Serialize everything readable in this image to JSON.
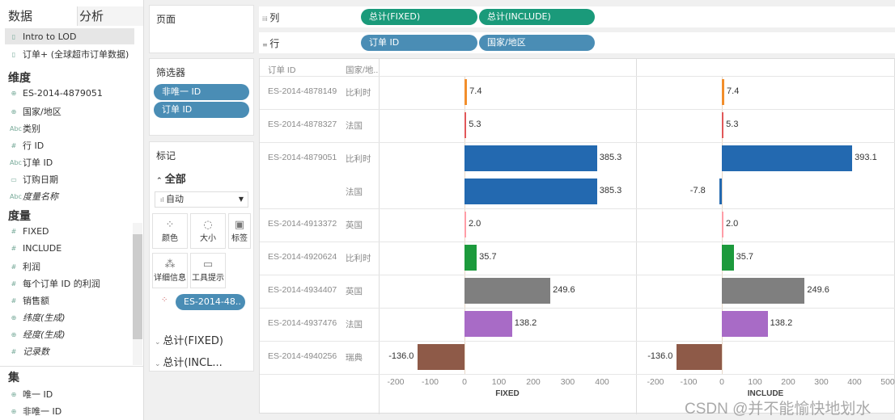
{
  "data_pane": {
    "tabs": [
      "数据",
      "分析"
    ],
    "sources": [
      "Intro to LOD",
      "订单+ (全球超市订单数据)"
    ],
    "dimensions_title": "维度",
    "dimensions": [
      {
        "icon": "set-icon",
        "label": "ES-2014-4879051"
      },
      {
        "icon": "globe-icon",
        "label": "国家/地区"
      },
      {
        "icon": "abc-icon",
        "label": "类别"
      },
      {
        "icon": "number-icon",
        "label": "行 ID"
      },
      {
        "icon": "abc-icon",
        "label": "订单 ID"
      },
      {
        "icon": "calendar-icon",
        "label": "订购日期"
      },
      {
        "icon": "abc-icon",
        "label": "度量名称"
      }
    ],
    "measures_title": "度量",
    "measures": [
      {
        "icon": "number-icon",
        "label": "FIXED"
      },
      {
        "icon": "number-icon",
        "label": "INCLUDE"
      },
      {
        "icon": "number-icon",
        "label": "利润"
      },
      {
        "icon": "number-icon",
        "label": "每个订单 ID 的利润"
      },
      {
        "icon": "number-icon",
        "label": "销售额"
      },
      {
        "icon": "globe-icon",
        "label": "纬度(生成)"
      },
      {
        "icon": "globe-icon",
        "label": "经度(生成)"
      },
      {
        "icon": "number-icon",
        "label": "记录数"
      }
    ],
    "sets_title": "集",
    "sets": [
      {
        "icon": "set-icon",
        "label": "唯一 ID"
      },
      {
        "icon": "set-icon",
        "label": "非唯一 ID"
      }
    ]
  },
  "pages": {
    "title": "页面"
  },
  "filters": {
    "title": "筛选器",
    "pills": [
      "非唯一 ID",
      "订单 ID"
    ]
  },
  "marks": {
    "title": "标记",
    "all": "全部",
    "type": "自动",
    "buttons": [
      "颜色",
      "大小",
      "标签",
      "详细信息",
      "工具提示"
    ],
    "color_pill": "ES-2014-48..",
    "sections": [
      "总计(FIXED)",
      "总计(INCL..."
    ]
  },
  "shelves": {
    "columns_label": "列",
    "columns": [
      "总计(FIXED)",
      "总计(INCLUDE)"
    ],
    "rows_label": "行",
    "rows": [
      "订单 ID",
      "国家/地区"
    ]
  },
  "view": {
    "headers": [
      "订单 ID",
      "国家/地.."
    ],
    "axis_titles": [
      "FIXED",
      "INCLUDE"
    ],
    "watermark": "CSDN @并不能愉快地划水"
  },
  "chart_data": {
    "type": "bar",
    "orientation": "horizontal",
    "rows": [
      {
        "order": "ES-2014-4878149",
        "country": "比利时",
        "fixed": 7.4,
        "include": 7.4,
        "color": "#f28e2b"
      },
      {
        "order": "ES-2014-4878327",
        "country": "法国",
        "fixed": 5.3,
        "include": 5.3,
        "color": "#e15759"
      },
      {
        "order": "ES-2014-4879051",
        "country": "比利时",
        "fixed": 385.3,
        "include": 393.1,
        "color": "#2369b0"
      },
      {
        "order": "",
        "country": "法国",
        "fixed": 385.3,
        "include": -7.8,
        "color": "#2369b0"
      },
      {
        "order": "ES-2014-4913372",
        "country": "英国",
        "fixed": 2.0,
        "include": 2.0,
        "color": "#ff9da7"
      },
      {
        "order": "ES-2014-4920624",
        "country": "比利时",
        "fixed": 35.7,
        "include": 35.7,
        "color": "#1c9a3c"
      },
      {
        "order": "ES-2014-4934407",
        "country": "英国",
        "fixed": 249.6,
        "include": 249.6,
        "color": "#7f7f7f"
      },
      {
        "order": "ES-2014-4937476",
        "country": "法国",
        "fixed": 138.2,
        "include": 138.2,
        "color": "#a86bc6"
      },
      {
        "order": "ES-2014-4940256",
        "country": "瑞典",
        "fixed": -136.0,
        "include": -136.0,
        "color": "#8e5a48"
      }
    ],
    "fixed_ticks": [
      "-200",
      "-100",
      "0",
      "100",
      "200",
      "300",
      "400"
    ],
    "include_ticks": [
      "-200",
      "-100",
      "0",
      "100",
      "200",
      "300",
      "400",
      "500"
    ],
    "xlabels": [
      "FIXED",
      "INCLUDE"
    ]
  }
}
